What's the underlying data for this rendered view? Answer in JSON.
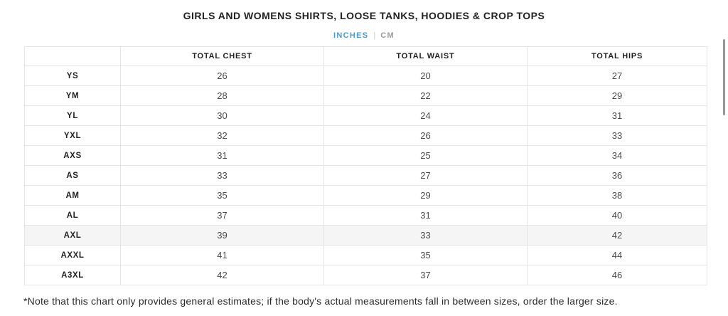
{
  "title": "GIRLS AND WOMENS SHIRTS, LOOSE TANKS, HOODIES & CROP TOPS",
  "unit_tabs": {
    "active_label": "INCHES",
    "separator": "|",
    "inactive_label": "CM"
  },
  "table": {
    "columns": [
      "",
      "TOTAL CHEST",
      "TOTAL WAIST",
      "TOTAL HIPS"
    ],
    "rows": [
      {
        "size": "YS",
        "values": [
          "26",
          "20",
          "27"
        ]
      },
      {
        "size": "YM",
        "values": [
          "28",
          "22",
          "29"
        ]
      },
      {
        "size": "YL",
        "values": [
          "30",
          "24",
          "31"
        ]
      },
      {
        "size": "YXL",
        "values": [
          "32",
          "26",
          "33"
        ]
      },
      {
        "size": "AXS",
        "values": [
          "31",
          "25",
          "34"
        ]
      },
      {
        "size": "AS",
        "values": [
          "33",
          "27",
          "36"
        ]
      },
      {
        "size": "AM",
        "values": [
          "35",
          "29",
          "38"
        ]
      },
      {
        "size": "AL",
        "values": [
          "37",
          "31",
          "40"
        ]
      },
      {
        "size": "AXL",
        "values": [
          "39",
          "33",
          "42"
        ]
      },
      {
        "size": "AXXL",
        "values": [
          "41",
          "35",
          "44"
        ]
      },
      {
        "size": "A3XL",
        "values": [
          "42",
          "37",
          "46"
        ]
      }
    ],
    "highlighted_size": "AXL"
  },
  "footnote": "*Note that this chart only provides general estimates; if the body's actual measurements fall in between sizes, order the larger size.",
  "colors": {
    "accent_blue": "#4a9ad4",
    "inactive_gray": "#9b9b9b",
    "border": "#e4e4e4",
    "highlight_row_bg": "#f5f5f5"
  }
}
